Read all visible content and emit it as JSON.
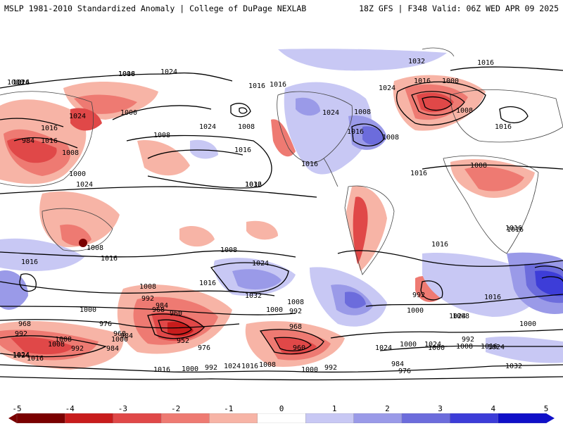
{
  "header": {
    "left": "MSLP 1981-2010 Standardized Anomaly | College of DuPage NEXLAB",
    "right": "18Z GFS | F348 Valid: 06Z WED APR 09 2025"
  },
  "colorbar": {
    "ticks": [
      "-5",
      "-4",
      "-3",
      "-2",
      "-1",
      "0",
      "1",
      "2",
      "3",
      "4",
      "5"
    ],
    "colors": [
      "#7a0000",
      "#c81c1c",
      "#e04848",
      "#ee7a72",
      "#f7b4a6",
      "#ffffff",
      "#c8c8f4",
      "#9a9ae8",
      "#6c6cdc",
      "#3d3dd8",
      "#1010c8"
    ]
  },
  "isobars": [
    "1024",
    "1016",
    "1024",
    "1016",
    "1016",
    "1032",
    "1024",
    "1016",
    "1000",
    "1016",
    "1008",
    "1016",
    "1008",
    "1024",
    "1016",
    "1008",
    "1000",
    "1024",
    "1016",
    "984",
    "1008",
    "1000",
    "1008",
    "1016",
    "1024",
    "1032",
    "1016",
    "1016",
    "1008",
    "1008",
    "1016",
    "1024",
    "1008",
    "1016",
    "1016",
    "1008",
    "1016",
    "1008",
    "1024",
    "1016",
    "1016",
    "1032",
    "1016",
    "1008",
    "1024",
    "1000",
    "992",
    "984",
    "968",
    "960",
    "1000",
    "992",
    "1008",
    "1000",
    "968",
    "976",
    "992",
    "968",
    "984",
    "1008",
    "1000",
    "1008",
    "992",
    "984",
    "952",
    "976",
    "1016",
    "1024",
    "968",
    "960",
    "1000",
    "1024",
    "1008",
    "1000",
    "992",
    "1016",
    "1024",
    "1016",
    "1000",
    "992",
    "1024",
    "1016",
    "1008",
    "1000",
    "992",
    "984",
    "976",
    "1024",
    "1016",
    "1008",
    "1032",
    "1000",
    "1024",
    "992",
    "1016",
    "1016",
    "1008"
  ]
}
